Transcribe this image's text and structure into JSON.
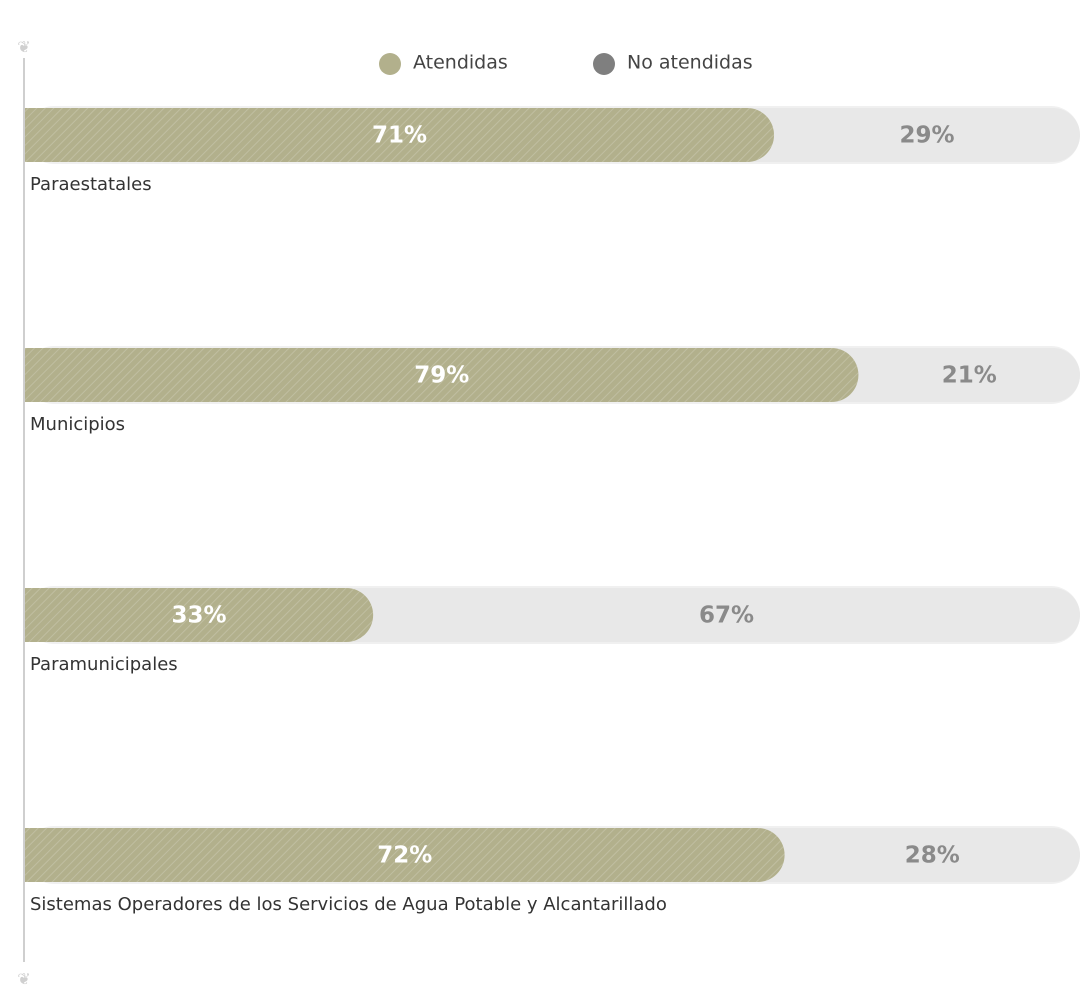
{
  "chart_data": {
    "type": "stacked_bar_horizontal",
    "categories": [
      "Paraestatales",
      "Municipios",
      "Paramunicipales",
      "Sistemas Operadores de los Servicios de Agua Potable y Alcantarillado"
    ],
    "series": [
      {
        "name": "Atendidas",
        "color": "#b2b08c",
        "bar_color": "#b2b08c",
        "values": [
          71,
          79,
          33,
          72
        ],
        "value_labels": [
          "71%",
          "79%",
          "33%",
          "72%"
        ]
      },
      {
        "name": "No atendidas",
        "color": "#7f7f7f",
        "bar_color": "#e8e8e8",
        "values": [
          29,
          21,
          67,
          28
        ],
        "value_labels": [
          "29%",
          "21%",
          "67%",
          "28%"
        ]
      }
    ],
    "xlim": [
      0,
      100
    ]
  }
}
